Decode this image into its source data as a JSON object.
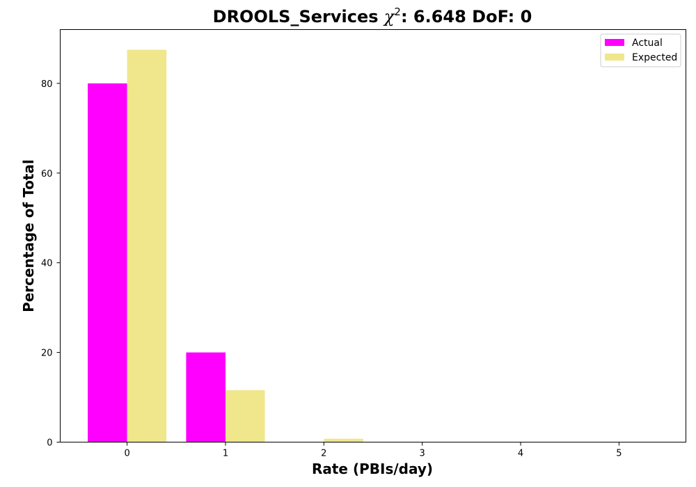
{
  "chart_data": {
    "type": "bar",
    "title_main": "DROOLS_Services ",
    "title_symbol": "χ",
    "title_superscript": "2",
    "title_rest": ": 6.648 DoF: 0",
    "xlabel": "Rate (PBIs/day)",
    "ylabel": "Percentage of Total",
    "categories": [
      "0",
      "1",
      "2",
      "3",
      "4",
      "5"
    ],
    "x": [
      0,
      1,
      2,
      3,
      4,
      5
    ],
    "series": [
      {
        "name": "Actual",
        "color": "#ff00ff",
        "values": [
          80.0,
          20.0,
          0.0,
          0.0,
          0.0,
          0.0
        ]
      },
      {
        "name": "Expected",
        "color": "#f0e68c",
        "values": [
          87.5,
          11.6,
          0.75,
          0.0,
          0.0,
          0.0
        ]
      }
    ],
    "xlim": [
      -0.68,
      5.68
    ],
    "ylim": [
      0,
      92
    ],
    "yticks": [
      0,
      20,
      40,
      60,
      80
    ],
    "legend_position": "top-right",
    "grid": false
  }
}
